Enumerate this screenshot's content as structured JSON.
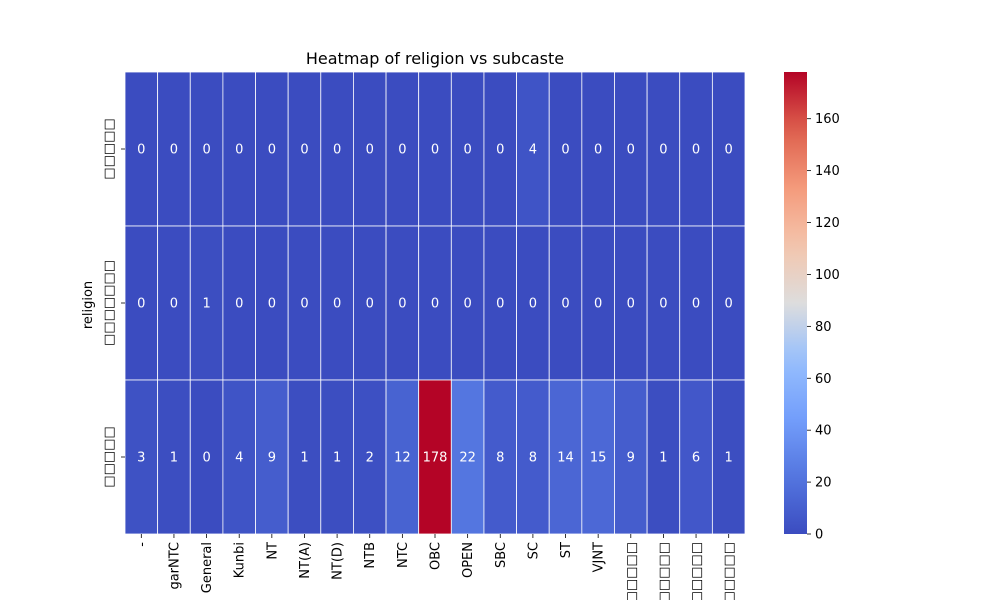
{
  "chart_data": {
    "type": "heatmap",
    "title": "Heatmap of religion vs subcaste",
    "xlabel": "",
    "ylabel": "religion",
    "x_categories": [
      "-",
      "garNTC",
      "General",
      "Kunbi",
      "NT",
      "NT(A)",
      "NT(D)",
      "NTB",
      "NTC",
      "OBC",
      "OPEN",
      "SBC",
      "SC",
      "ST",
      "VJNT",
      "□□□□□□□",
      "□□□□□□",
      "□□□□□",
      "□□□□□□□"
    ],
    "y_categories": [
      "□□□□□",
      "□□□□□□□",
      "□□□□□"
    ],
    "values": [
      [
        0,
        0,
        0,
        0,
        0,
        0,
        0,
        0,
        0,
        0,
        0,
        0,
        4,
        0,
        0,
        0,
        0,
        0,
        0
      ],
      [
        0,
        0,
        1,
        0,
        0,
        0,
        0,
        0,
        0,
        0,
        0,
        0,
        0,
        0,
        0,
        0,
        0,
        0,
        0
      ],
      [
        3,
        1,
        0,
        4,
        9,
        1,
        1,
        2,
        12,
        178,
        22,
        8,
        8,
        14,
        15,
        9,
        1,
        6,
        1
      ]
    ],
    "colormap": "coolwarm",
    "vmin": 0,
    "vmax": 178,
    "colorbar_ticks": [
      0,
      20,
      40,
      60,
      80,
      100,
      120,
      140,
      160
    ],
    "annotations": true,
    "grid_line_color": "#ffffff"
  }
}
